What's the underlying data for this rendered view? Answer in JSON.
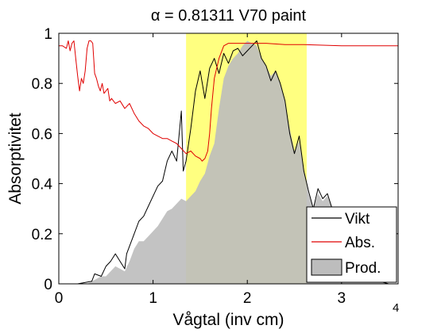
{
  "chart_data": {
    "type": "line",
    "title": "α = 0.81311 V70 paint",
    "xlabel": "Vågtal (inv cm)",
    "ylabel": "Absorptivitet",
    "x_exponent_label": "4",
    "xlim": [
      0,
      3.6
    ],
    "ylim": [
      0,
      1
    ],
    "x_ticks": [
      0,
      1,
      2,
      3
    ],
    "x_tick_labels": [
      "0",
      "1",
      "2",
      "3"
    ],
    "y_ticks": [
      0,
      0.2,
      0.4,
      0.6,
      0.8,
      1
    ],
    "y_tick_labels": [
      "0",
      "0.2",
      "0.4",
      "0.6",
      "0.8",
      "1"
    ],
    "highlight_band": {
      "x_start": 1.35,
      "x_end": 2.63,
      "color": "#ffff80"
    },
    "legend": {
      "placement": "bottom-right",
      "entries": [
        "Vikt",
        "Abs.",
        "Prod."
      ]
    },
    "series": [
      {
        "name": "Vikt",
        "color": "#000000",
        "style": "line",
        "x": [
          0.0,
          0.2,
          0.35,
          0.38,
          0.45,
          0.5,
          0.55,
          0.6,
          0.65,
          0.7,
          0.72,
          0.8,
          0.85,
          0.9,
          0.95,
          1.0,
          1.05,
          1.1,
          1.15,
          1.2,
          1.25,
          1.3,
          1.32,
          1.35,
          1.4,
          1.45,
          1.5,
          1.55,
          1.6,
          1.65,
          1.7,
          1.75,
          1.8,
          1.85,
          1.9,
          1.95,
          2.0,
          2.05,
          2.1,
          2.15,
          2.2,
          2.25,
          2.3,
          2.35,
          2.4,
          2.45,
          2.5,
          2.55,
          2.6,
          2.65,
          2.7,
          2.75,
          2.8,
          2.85,
          2.9,
          2.95,
          3.0,
          3.05,
          3.1,
          3.2,
          3.3,
          3.4,
          3.5
        ],
        "y": [
          0.0,
          0.0,
          0.01,
          0.04,
          0.03,
          0.07,
          0.09,
          0.12,
          0.09,
          0.06,
          0.12,
          0.2,
          0.25,
          0.27,
          0.31,
          0.35,
          0.39,
          0.41,
          0.49,
          0.53,
          0.49,
          0.69,
          0.45,
          0.49,
          0.62,
          0.77,
          0.85,
          0.74,
          0.86,
          0.9,
          0.84,
          0.92,
          0.88,
          0.93,
          0.94,
          0.91,
          0.93,
          0.95,
          0.97,
          0.9,
          0.87,
          0.81,
          0.85,
          0.8,
          0.73,
          0.6,
          0.52,
          0.59,
          0.45,
          0.37,
          0.3,
          0.38,
          0.34,
          0.36,
          0.3,
          0.24,
          0.2,
          0.14,
          0.1,
          0.06,
          0.03,
          0.01,
          0.0
        ]
      },
      {
        "name": "Abs.",
        "color": "#e00000",
        "style": "line",
        "x": [
          0.0,
          0.04,
          0.08,
          0.1,
          0.12,
          0.14,
          0.16,
          0.18,
          0.2,
          0.22,
          0.24,
          0.26,
          0.28,
          0.3,
          0.32,
          0.34,
          0.36,
          0.38,
          0.4,
          0.42,
          0.44,
          0.46,
          0.48,
          0.5,
          0.52,
          0.54,
          0.56,
          0.6,
          0.65,
          0.7,
          0.75,
          0.8,
          0.85,
          0.9,
          0.95,
          1.0,
          1.05,
          1.1,
          1.15,
          1.2,
          1.25,
          1.3,
          1.35,
          1.4,
          1.45,
          1.5,
          1.52,
          1.55,
          1.58,
          1.6,
          1.62,
          1.65,
          1.7,
          1.75,
          1.8,
          1.85,
          1.9,
          2.0,
          2.2,
          2.4,
          2.6,
          3.0,
          3.3,
          3.6
        ],
        "y": [
          0.95,
          0.95,
          0.94,
          0.97,
          0.93,
          0.96,
          0.97,
          0.9,
          0.83,
          0.77,
          0.82,
          0.8,
          0.85,
          0.94,
          0.97,
          0.97,
          0.96,
          0.84,
          0.82,
          0.79,
          0.77,
          0.8,
          0.76,
          0.77,
          0.78,
          0.73,
          0.74,
          0.72,
          0.73,
          0.7,
          0.72,
          0.68,
          0.65,
          0.63,
          0.62,
          0.6,
          0.59,
          0.58,
          0.58,
          0.57,
          0.56,
          0.54,
          0.52,
          0.53,
          0.51,
          0.5,
          0.49,
          0.5,
          0.53,
          0.6,
          0.7,
          0.82,
          0.9,
          0.95,
          0.96,
          0.96,
          0.96,
          0.96,
          0.96,
          0.955,
          0.955,
          0.95,
          0.95,
          0.95
        ]
      },
      {
        "name": "Prod.",
        "color": "#bdbdbd",
        "style": "area",
        "x": [
          0.0,
          0.3,
          0.4,
          0.45,
          0.5,
          0.55,
          0.6,
          0.65,
          0.7,
          0.75,
          0.8,
          0.85,
          0.9,
          0.95,
          1.0,
          1.05,
          1.1,
          1.15,
          1.2,
          1.25,
          1.3,
          1.35,
          1.4,
          1.45,
          1.5,
          1.55,
          1.6,
          1.65,
          1.7,
          1.75,
          1.8,
          1.85,
          1.9,
          1.95,
          2.0,
          2.05,
          2.1,
          2.15,
          2.2,
          2.25,
          2.3,
          2.35,
          2.4,
          2.45,
          2.5,
          2.55,
          2.6,
          2.65,
          2.7,
          2.75,
          2.8,
          2.85,
          2.9,
          2.95,
          3.0,
          3.05,
          3.1,
          3.2,
          3.3,
          3.4,
          3.5
        ],
        "y": [
          0.0,
          0.0,
          0.02,
          0.03,
          0.03,
          0.05,
          0.07,
          0.06,
          0.05,
          0.09,
          0.14,
          0.17,
          0.17,
          0.19,
          0.21,
          0.23,
          0.26,
          0.29,
          0.3,
          0.32,
          0.34,
          0.33,
          0.35,
          0.37,
          0.41,
          0.44,
          0.51,
          0.56,
          0.7,
          0.82,
          0.87,
          0.9,
          0.92,
          0.95,
          0.97,
          0.96,
          0.95,
          0.9,
          0.87,
          0.83,
          0.85,
          0.8,
          0.73,
          0.62,
          0.53,
          0.57,
          0.45,
          0.36,
          0.3,
          0.36,
          0.33,
          0.35,
          0.3,
          0.24,
          0.2,
          0.14,
          0.1,
          0.06,
          0.03,
          0.01,
          0.0
        ]
      }
    ]
  }
}
